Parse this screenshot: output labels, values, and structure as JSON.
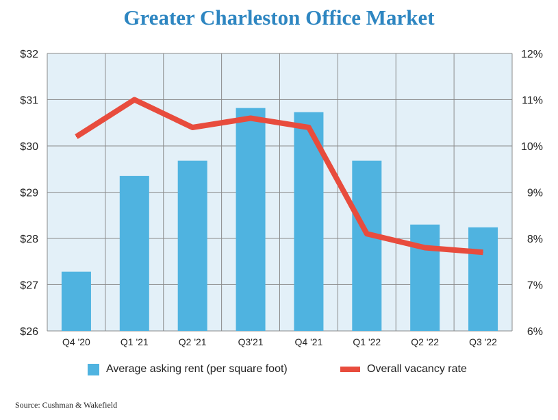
{
  "chart_data": {
    "type": "bar",
    "title": "Greater Charleston Office Market",
    "categories": [
      "Q4 '20",
      "Q1 '21",
      "Q2 '21",
      "Q3'21",
      "Q4 '21",
      "Q1 '22",
      "Q2 '22",
      "Q3 '22"
    ],
    "series": [
      {
        "name": "Average asking rent (per square foot)",
        "type": "bar",
        "axis": "left",
        "values": [
          27.28,
          29.35,
          29.68,
          30.82,
          30.73,
          29.68,
          28.3,
          28.24
        ]
      },
      {
        "name": "Overall vacancy rate",
        "type": "line",
        "axis": "right",
        "values": [
          10.2,
          11.0,
          10.4,
          10.6,
          10.4,
          8.1,
          7.8,
          7.7
        ]
      }
    ],
    "y_left": {
      "ylim": [
        26,
        32
      ],
      "ticks": [
        "$26",
        "$27",
        "$28",
        "$29",
        "$30",
        "$31",
        "$32"
      ]
    },
    "y_right": {
      "ylim": [
        6,
        12
      ],
      "ticks": [
        "6%",
        "7%",
        "8%",
        "9%",
        "10%",
        "11%",
        "12%"
      ]
    },
    "grid": true,
    "legend_position": "bottom",
    "colors": {
      "bar": "#4fb3e0",
      "line": "#e84c3d",
      "plot_bg": "#e3f0f8",
      "title": "#2e86c1"
    }
  },
  "source_text": "Source: Cushman & Wakefield"
}
